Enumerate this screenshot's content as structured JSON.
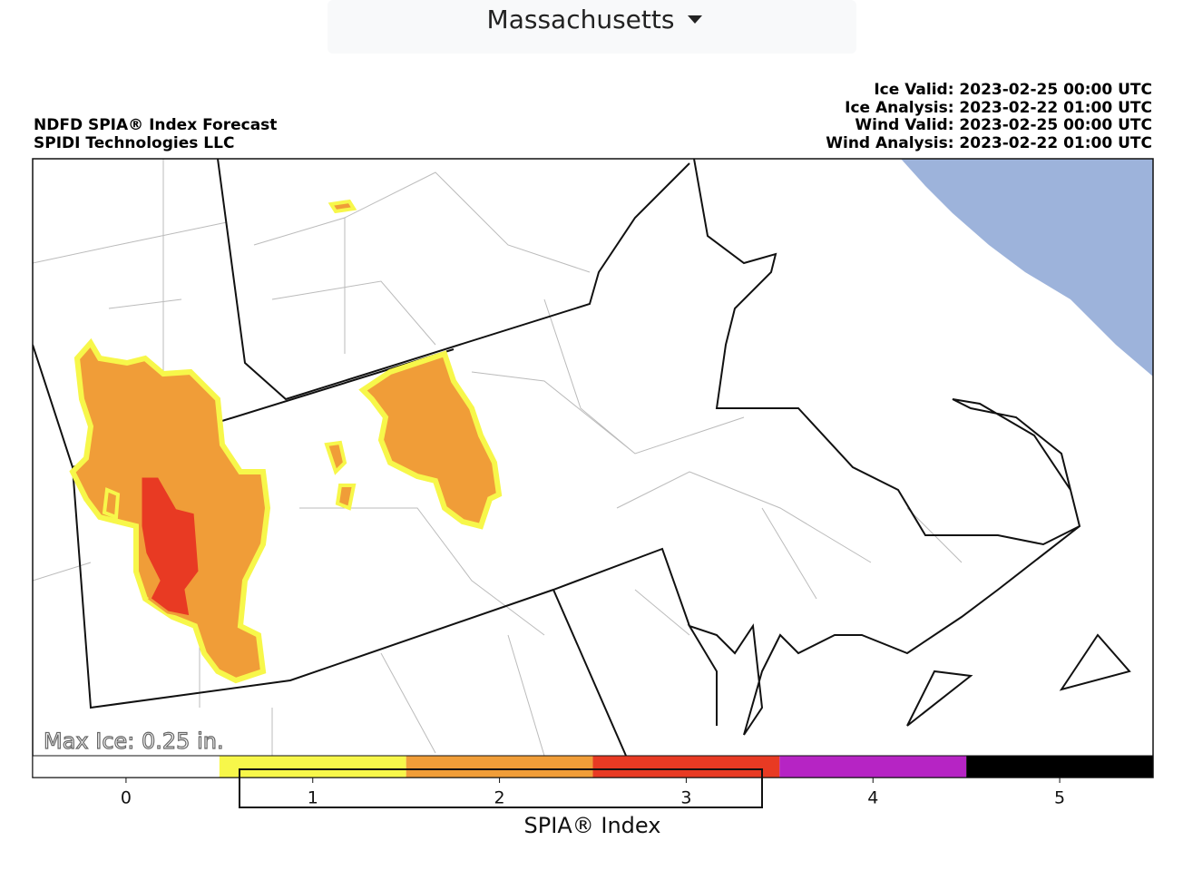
{
  "dropdown": {
    "label": "Massachusetts"
  },
  "header": {
    "title": "NDFD SPIA® Index Forecast",
    "subtitle": "SPIDI Technologies LLC",
    "times": [
      "Ice Valid: 2023-02-25 00:00 UTC",
      "Ice Analysis: 2023-02-22 01:00 UTC",
      "Wind Valid: 2023-02-25 00:00 UTC",
      "Wind Analysis: 2023-02-22 01:00 UTC"
    ]
  },
  "map": {
    "annotation": "Max Ice: 0.25 in."
  },
  "colorbar": {
    "ticks": [
      0,
      1,
      2,
      3,
      4,
      5
    ],
    "colors": [
      "#ffffff",
      "#f7f74a",
      "#f09d38",
      "#e83a23",
      "#b624c4",
      "#000000"
    ],
    "label": "SPIA® Index"
  }
}
